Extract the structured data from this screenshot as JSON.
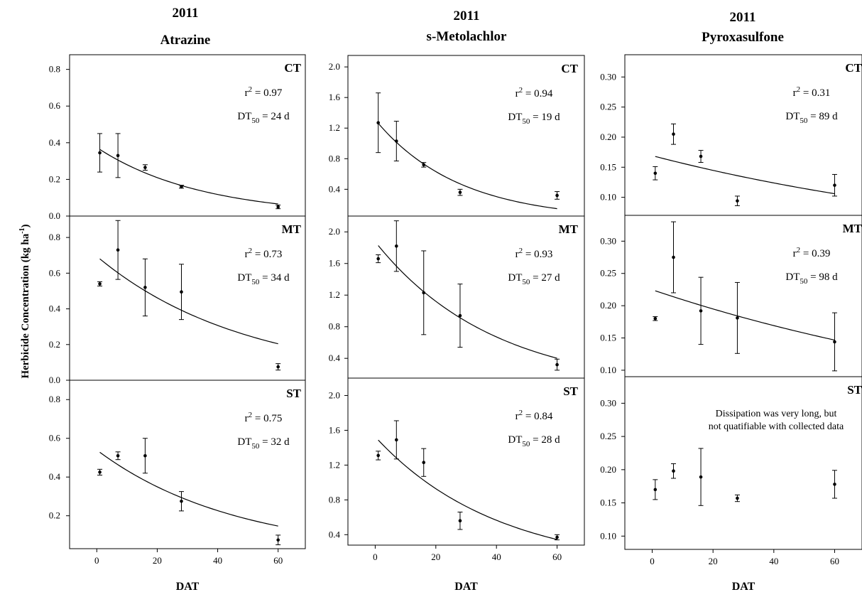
{
  "figure": {
    "ylabel": "Herbicide Concentration (kg ha",
    "ylabel_sup": "-1",
    "ylabel_close": ")"
  },
  "chart_data": [
    {
      "col": 0,
      "row": 0,
      "type": "scatter",
      "title": "2011",
      "subtitle": "Atrazine",
      "panel_label": "CT",
      "xlabel": "",
      "ylabel": "",
      "r2": "0.97",
      "dt50": "24",
      "xlim": [
        -9,
        69
      ],
      "ylim": [
        0,
        0.88
      ],
      "xticks": [
        "0",
        "20",
        "40",
        "60"
      ],
      "yticks": [
        "0.0",
        "0.2",
        "0.4",
        "0.6",
        "0.8"
      ],
      "x": [
        1,
        7,
        16,
        28,
        60
      ],
      "y": [
        0.345,
        0.33,
        0.265,
        0.16,
        0.05
      ],
      "err": [
        0.105,
        0.12,
        0.015,
        0.008,
        0.01
      ],
      "fit": {
        "a": 0.374,
        "k": 0.0289,
        "x0": 1,
        "x1": 60
      }
    },
    {
      "col": 0,
      "row": 1,
      "type": "scatter",
      "panel_label": "MT",
      "xlabel": "",
      "ylabel": "",
      "r2": "0.73",
      "dt50": "34",
      "xlim": [
        -9,
        69
      ],
      "ylim": [
        0,
        0.92
      ],
      "xticks": [
        "0",
        "20",
        "40",
        "60"
      ],
      "yticks": [
        "0.0",
        "0.2",
        "0.4",
        "0.6",
        "0.8"
      ],
      "x": [
        1,
        7,
        16,
        28,
        60
      ],
      "y": [
        0.54,
        0.73,
        0.52,
        0.495,
        0.075
      ],
      "err": [
        0.012,
        0.165,
        0.16,
        0.155,
        0.018
      ],
      "fit": {
        "a": 0.6944,
        "k": 0.0204,
        "x0": 1,
        "x1": 60
      }
    },
    {
      "col": 0,
      "row": 2,
      "type": "scatter",
      "panel_label": "ST",
      "xlabel": "DAT",
      "ylabel": "",
      "r2": "0.75",
      "dt50": "32",
      "xlim": [
        -9,
        69
      ],
      "ylim": [
        0.03,
        0.9
      ],
      "xticks": [
        "0",
        "20",
        "40",
        "60"
      ],
      "yticks": [
        "0.2",
        "0.4",
        "0.6",
        "0.8"
      ],
      "x": [
        1,
        7,
        16,
        28,
        60
      ],
      "y": [
        0.425,
        0.51,
        0.51,
        0.275,
        0.075
      ],
      "err": [
        0.015,
        0.02,
        0.09,
        0.05,
        0.025
      ],
      "fit": {
        "a": 0.5395,
        "k": 0.0217,
        "x0": 1,
        "x1": 60
      }
    },
    {
      "col": 1,
      "row": 0,
      "type": "scatter",
      "title": "2011",
      "subtitle": "s-Metolachlor",
      "panel_label": "CT",
      "xlabel": "",
      "ylabel": "",
      "r2": "0.94",
      "dt50": "19",
      "xlim": [
        -9,
        69
      ],
      "ylim": [
        0.05,
        2.15
      ],
      "xticks": [
        "0",
        "20",
        "40",
        "60"
      ],
      "yticks": [
        "0.4",
        "0.8",
        "1.2",
        "1.6",
        "2.0"
      ],
      "x": [
        1,
        7,
        16,
        28,
        60
      ],
      "y": [
        1.27,
        1.03,
        0.72,
        0.36,
        0.32
      ],
      "err": [
        0.39,
        0.26,
        0.03,
        0.04,
        0.05
      ],
      "fit": {
        "a": 1.3098,
        "k": 0.0365,
        "x0": 1,
        "x1": 60
      }
    },
    {
      "col": 1,
      "row": 1,
      "type": "scatter",
      "panel_label": "MT",
      "xlabel": "",
      "ylabel": "",
      "r2": "0.93",
      "dt50": "27",
      "xlim": [
        -9,
        69
      ],
      "ylim": [
        0.15,
        2.2
      ],
      "xticks": [
        "0",
        "20",
        "40",
        "60"
      ],
      "yticks": [
        "0.4",
        "0.8",
        "1.2",
        "1.6",
        "2.0"
      ],
      "x": [
        1,
        7,
        16,
        28,
        60
      ],
      "y": [
        1.66,
        1.82,
        1.23,
        0.94,
        0.32
      ],
      "err": [
        0.05,
        0.32,
        0.53,
        0.4,
        0.07
      ],
      "fit": {
        "a": 1.8749,
        "k": 0.0257,
        "x0": 1,
        "x1": 60
      }
    },
    {
      "col": 1,
      "row": 2,
      "type": "scatter",
      "panel_label": "ST",
      "xlabel": "DAT",
      "ylabel": "",
      "r2": "0.84",
      "dt50": "28",
      "xlim": [
        -9,
        69
      ],
      "ylim": [
        0.28,
        2.2
      ],
      "xticks": [
        "0",
        "20",
        "40",
        "60"
      ],
      "yticks": [
        "0.4",
        "0.8",
        "1.2",
        "1.6",
        "2.0"
      ],
      "x": [
        1,
        7,
        16,
        28,
        60
      ],
      "y": [
        1.31,
        1.49,
        1.23,
        0.56,
        0.37
      ],
      "err": [
        0.05,
        0.22,
        0.16,
        0.1,
        0.03
      ],
      "fit": {
        "a": 1.5253,
        "k": 0.0248,
        "x0": 1,
        "x1": 60
      }
    },
    {
      "col": 2,
      "row": 0,
      "type": "scatter",
      "title": "2011",
      "subtitle": "Pyroxasulfone",
      "panel_label": "CT",
      "xlabel": "",
      "ylabel": "",
      "r2": "0.31",
      "dt50": "89",
      "xlim": [
        -9,
        69
      ],
      "ylim": [
        0.07,
        0.337
      ],
      "xticks": [
        "0",
        "20",
        "40",
        "60"
      ],
      "yticks": [
        "0.10",
        "0.15",
        "0.20",
        "0.25",
        "0.30"
      ],
      "x": [
        1,
        7,
        16,
        28,
        60
      ],
      "y": [
        0.14,
        0.205,
        0.168,
        0.094,
        0.12
      ],
      "err": [
        0.011,
        0.017,
        0.01,
        0.008,
        0.018
      ],
      "fit": {
        "a": 0.1692,
        "k": 0.0078,
        "x0": 1,
        "x1": 60
      }
    },
    {
      "col": 2,
      "row": 1,
      "type": "scatter",
      "panel_label": "MT",
      "xlabel": "",
      "ylabel": "",
      "r2": "0.39",
      "dt50": "98",
      "xlim": [
        -9,
        69
      ],
      "ylim": [
        0.09,
        0.34
      ],
      "xticks": [
        "0",
        "20",
        "40",
        "60"
      ],
      "yticks": [
        "0.10",
        "0.15",
        "0.20",
        "0.25",
        "0.30"
      ],
      "x": [
        1,
        7,
        16,
        28,
        60
      ],
      "y": [
        0.18,
        0.275,
        0.192,
        0.181,
        0.144
      ],
      "err": [
        0.003,
        0.055,
        0.052,
        0.055,
        0.045
      ],
      "fit": {
        "a": 0.2247,
        "k": 0.0071,
        "x0": 1,
        "x1": 60
      }
    },
    {
      "col": 2,
      "row": 2,
      "type": "scatter",
      "panel_label": "ST",
      "xlabel": "DAT",
      "ylabel": "",
      "note_line1": "Dissipation was very long, but",
      "note_line2": "not quatifiable with collected data",
      "xlim": [
        -9,
        69
      ],
      "ylim": [
        0.08,
        0.34
      ],
      "xticks": [
        "0",
        "20",
        "40",
        "60"
      ],
      "yticks": [
        "0.10",
        "0.15",
        "0.20",
        "0.25",
        "0.30"
      ],
      "x": [
        1,
        7,
        16,
        28,
        60
      ],
      "y": [
        0.17,
        0.198,
        0.189,
        0.157,
        0.178
      ],
      "err": [
        0.015,
        0.011,
        0.043,
        0.005,
        0.021
      ]
    }
  ]
}
